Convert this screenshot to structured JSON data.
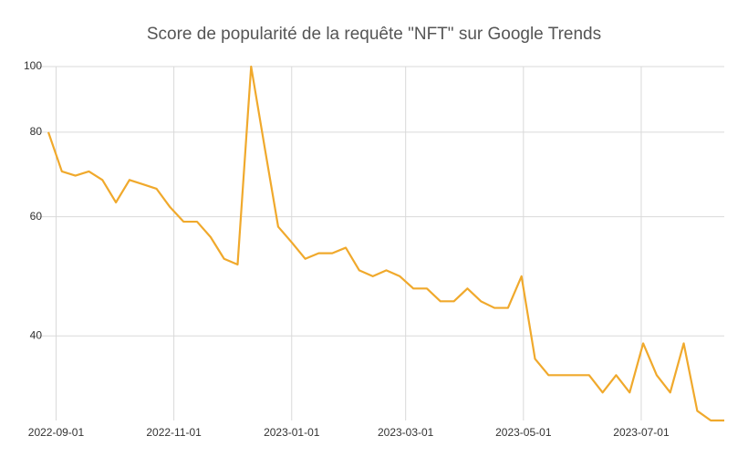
{
  "chart_data": {
    "type": "line",
    "title": "Score de popularité de la requête \"NFT\" sur Google Trends",
    "x": [
      "2022-08-28",
      "2022-09-04",
      "2022-09-11",
      "2022-09-18",
      "2022-09-25",
      "2022-10-02",
      "2022-10-09",
      "2022-10-16",
      "2022-10-23",
      "2022-10-30",
      "2022-11-06",
      "2022-11-13",
      "2022-11-20",
      "2022-11-27",
      "2022-12-04",
      "2022-12-11",
      "2022-12-18",
      "2022-12-25",
      "2023-01-01",
      "2023-01-08",
      "2023-01-15",
      "2023-01-22",
      "2023-01-29",
      "2023-02-05",
      "2023-02-12",
      "2023-02-19",
      "2023-02-26",
      "2023-03-05",
      "2023-03-12",
      "2023-03-19",
      "2023-03-26",
      "2023-04-02",
      "2023-04-09",
      "2023-04-16",
      "2023-04-23",
      "2023-04-30",
      "2023-05-07",
      "2023-05-14",
      "2023-05-21",
      "2023-05-28",
      "2023-06-04",
      "2023-06-11",
      "2023-06-18",
      "2023-06-25",
      "2023-07-02",
      "2023-07-09",
      "2023-07-16",
      "2023-07-23",
      "2023-07-30",
      "2023-08-06",
      "2023-08-13"
    ],
    "values": [
      80,
      70,
      69,
      70,
      68,
      63,
      68,
      67,
      66,
      62,
      59,
      59,
      56,
      52,
      51,
      100,
      76,
      58,
      55,
      52,
      53,
      53,
      54,
      50,
      49,
      50,
      49,
      47,
      47,
      45,
      45,
      47,
      45,
      44,
      44,
      49,
      37,
      35,
      35,
      35,
      35,
      33,
      35,
      33,
      39,
      35,
      33,
      39,
      31,
      30,
      30
    ],
    "color": "#f0a92c",
    "xlim": [
      "2022-08-28",
      "2023-08-13"
    ],
    "xticks": [
      "2022-09-01",
      "2022-11-01",
      "2023-01-01",
      "2023-03-01",
      "2023-05-01",
      "2023-07-01"
    ],
    "ylim": [
      30,
      100
    ],
    "yticks": [
      40,
      60,
      80,
      100
    ],
    "log_y": true,
    "grid": true
  }
}
